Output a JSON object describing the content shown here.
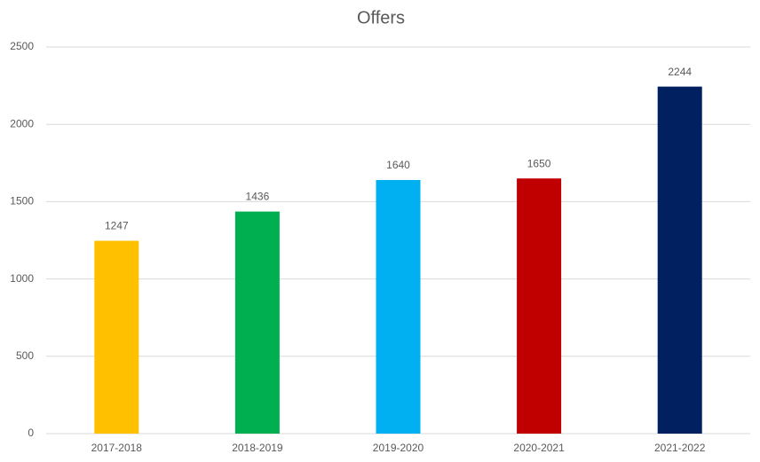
{
  "chart_data": {
    "type": "bar",
    "title": "Offers",
    "categories": [
      "2017-2018",
      "2018-2019",
      "2019-2020",
      "2020-2021",
      "2021-2022"
    ],
    "values": [
      1247,
      1436,
      1640,
      1650,
      2244
    ],
    "colors": [
      "#ffc000",
      "#00b050",
      "#00b0f0",
      "#c00000",
      "#002060"
    ],
    "ylim": [
      0,
      2500
    ],
    "yticks": [
      0,
      500,
      1000,
      1500,
      2000,
      2500
    ],
    "grid": true
  }
}
